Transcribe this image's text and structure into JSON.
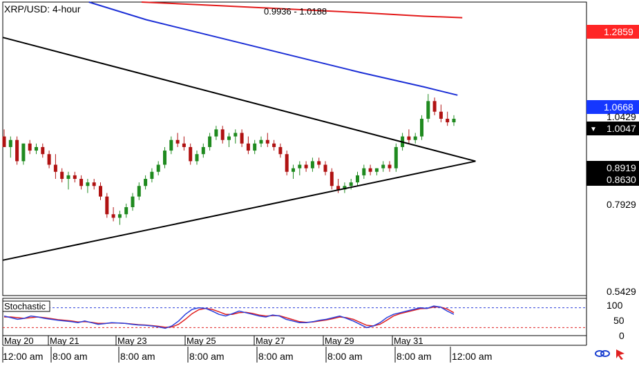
{
  "header": {
    "title": "XRP/USD: 4-hour",
    "ohlc_readout": "0.9936 - 1.0188"
  },
  "price_tags": {
    "sma_red": "1.2859",
    "sma_blue": "1.0668",
    "current": "1.0047",
    "triangle_upper": "0.8919",
    "triangle_lower": "0.8630"
  },
  "colors": {
    "up": "#1f8a1f",
    "down": "#b01212",
    "sma_red": "#e31a1a",
    "sma_blue": "#1c2fd6",
    "trend": "#000000",
    "stoch_k": "#2a3fdc",
    "stoch_d": "#e02020",
    "tag_red": "#ff2525",
    "tag_blue": "#1537ff"
  },
  "stochastic": {
    "label": "Stochastic",
    "levels": [
      "100",
      "50",
      "0"
    ],
    "k": [
      55,
      50,
      45,
      48,
      55,
      52,
      48,
      45,
      42,
      40,
      38,
      35,
      40,
      35,
      30,
      32,
      35,
      34,
      33,
      30,
      28,
      27,
      25,
      22,
      18,
      25,
      40,
      60,
      75,
      80,
      78,
      70,
      60,
      55,
      62,
      70,
      65,
      60,
      55,
      52,
      58,
      55,
      45,
      40,
      35,
      35,
      38,
      42,
      45,
      50,
      55,
      48,
      40,
      30,
      20,
      25,
      35,
      50,
      60,
      65,
      70,
      75,
      80,
      78,
      85,
      82,
      70,
      60
    ],
    "d": [
      52,
      52,
      50,
      48,
      50,
      52,
      50,
      47,
      44,
      42,
      40,
      37,
      38,
      36,
      33,
      33,
      34,
      34,
      33,
      31,
      29,
      28,
      26,
      24,
      21,
      22,
      30,
      45,
      62,
      74,
      78,
      75,
      68,
      60,
      60,
      65,
      66,
      63,
      58,
      55,
      56,
      56,
      50,
      44,
      38,
      36,
      37,
      40,
      43,
      47,
      52,
      50,
      45,
      36,
      27,
      25,
      30,
      42,
      55,
      62,
      67,
      72,
      77,
      78,
      82,
      82,
      76,
      65
    ]
  },
  "chart_data": {
    "type": "candlestick",
    "title": "XRP/USD: 4-hour",
    "y_ticks": [
      "1.0429",
      "0.7929",
      "0.5429"
    ],
    "ylim": [
      0.5,
      1.33
    ],
    "x_date_labels": [
      "May 20",
      "May 21",
      "May 23",
      "May 25",
      "May 27",
      "May 29",
      "May 31"
    ],
    "x_time_labels": [
      "12:00 am",
      "8:00 am",
      "8:00 am",
      "8:00 am",
      "8:00 am",
      "8:00 am",
      "8:00 am",
      "12:00 am"
    ],
    "candles": [
      [
        0.95,
        0.97,
        0.92,
        0.92
      ],
      [
        0.92,
        0.95,
        0.89,
        0.94
      ],
      [
        0.94,
        0.95,
        0.87,
        0.88
      ],
      [
        0.88,
        0.93,
        0.87,
        0.93
      ],
      [
        0.93,
        0.94,
        0.9,
        0.91
      ],
      [
        0.91,
        0.93,
        0.9,
        0.92
      ],
      [
        0.92,
        0.93,
        0.89,
        0.9
      ],
      [
        0.9,
        0.91,
        0.86,
        0.87
      ],
      [
        0.87,
        0.9,
        0.83,
        0.85
      ],
      [
        0.85,
        0.86,
        0.82,
        0.83
      ],
      [
        0.83,
        0.85,
        0.8,
        0.84
      ],
      [
        0.84,
        0.85,
        0.82,
        0.83
      ],
      [
        0.83,
        0.84,
        0.8,
        0.81
      ],
      [
        0.81,
        0.83,
        0.79,
        0.82
      ],
      [
        0.82,
        0.83,
        0.8,
        0.81
      ],
      [
        0.81,
        0.82,
        0.77,
        0.78
      ],
      [
        0.78,
        0.79,
        0.72,
        0.73
      ],
      [
        0.73,
        0.75,
        0.71,
        0.72
      ],
      [
        0.72,
        0.74,
        0.7,
        0.73
      ],
      [
        0.73,
        0.76,
        0.72,
        0.75
      ],
      [
        0.75,
        0.79,
        0.74,
        0.78
      ],
      [
        0.78,
        0.82,
        0.77,
        0.81
      ],
      [
        0.81,
        0.84,
        0.8,
        0.83
      ],
      [
        0.83,
        0.86,
        0.82,
        0.85
      ],
      [
        0.85,
        0.88,
        0.84,
        0.87
      ],
      [
        0.87,
        0.92,
        0.86,
        0.91
      ],
      [
        0.91,
        0.95,
        0.9,
        0.94
      ],
      [
        0.94,
        0.96,
        0.92,
        0.93
      ],
      [
        0.93,
        0.95,
        0.91,
        0.92
      ],
      [
        0.92,
        0.93,
        0.87,
        0.88
      ],
      [
        0.88,
        0.91,
        0.87,
        0.9
      ],
      [
        0.9,
        0.93,
        0.89,
        0.92
      ],
      [
        0.92,
        0.96,
        0.91,
        0.95
      ],
      [
        0.95,
        0.98,
        0.94,
        0.97
      ],
      [
        0.97,
        0.98,
        0.93,
        0.94
      ],
      [
        0.94,
        0.96,
        0.92,
        0.95
      ],
      [
        0.95,
        0.97,
        0.93,
        0.96
      ],
      [
        0.96,
        0.97,
        0.92,
        0.93
      ],
      [
        0.93,
        0.95,
        0.9,
        0.91
      ],
      [
        0.91,
        0.94,
        0.9,
        0.93
      ],
      [
        0.93,
        0.95,
        0.92,
        0.94
      ],
      [
        0.94,
        0.96,
        0.92,
        0.93
      ],
      [
        0.93,
        0.94,
        0.91,
        0.92
      ],
      [
        0.92,
        0.93,
        0.89,
        0.9
      ],
      [
        0.9,
        0.91,
        0.84,
        0.85
      ],
      [
        0.85,
        0.87,
        0.83,
        0.86
      ],
      [
        0.86,
        0.88,
        0.84,
        0.87
      ],
      [
        0.87,
        0.88,
        0.85,
        0.86
      ],
      [
        0.86,
        0.89,
        0.85,
        0.88
      ],
      [
        0.88,
        0.89,
        0.86,
        0.87
      ],
      [
        0.87,
        0.88,
        0.84,
        0.85
      ],
      [
        0.85,
        0.86,
        0.8,
        0.81
      ],
      [
        0.81,
        0.83,
        0.79,
        0.8
      ],
      [
        0.8,
        0.82,
        0.79,
        0.81
      ],
      [
        0.81,
        0.83,
        0.8,
        0.82
      ],
      [
        0.82,
        0.85,
        0.81,
        0.84
      ],
      [
        0.84,
        0.87,
        0.83,
        0.86
      ],
      [
        0.86,
        0.87,
        0.84,
        0.85
      ],
      [
        0.85,
        0.86,
        0.84,
        0.86
      ],
      [
        0.86,
        0.88,
        0.85,
        0.87
      ],
      [
        0.87,
        0.88,
        0.85,
        0.86
      ],
      [
        0.86,
        0.93,
        0.85,
        0.92
      ],
      [
        0.92,
        0.96,
        0.91,
        0.95
      ],
      [
        0.95,
        0.97,
        0.93,
        0.94
      ],
      [
        0.94,
        0.96,
        0.93,
        0.95
      ],
      [
        0.95,
        1.01,
        0.94,
        1.0
      ],
      [
        1.0,
        1.07,
        0.99,
        1.05
      ],
      [
        1.05,
        1.06,
        1.01,
        1.02
      ],
      [
        1.02,
        1.04,
        0.99,
        1.0
      ],
      [
        1.0,
        1.02,
        0.98,
        0.99
      ],
      [
        0.99,
        1.01,
        0.98,
        1.0
      ]
    ],
    "sma_blue": [
      [
        0.18,
        1.33
      ],
      [
        0.3,
        1.28
      ],
      [
        0.45,
        1.23
      ],
      [
        0.6,
        1.18
      ],
      [
        0.75,
        1.13
      ],
      [
        0.88,
        1.09
      ],
      [
        0.95,
        1.0668
      ]
    ],
    "sma_red": [
      [
        0.29,
        1.33
      ],
      [
        0.45,
        1.32
      ],
      [
        0.6,
        1.31
      ],
      [
        0.75,
        1.3
      ],
      [
        0.88,
        1.29
      ],
      [
        0.96,
        1.2859
      ]
    ],
    "trendlines": [
      {
        "from": [
          0.0,
          1.23
        ],
        "to": [
          1.0,
          0.88
        ]
      },
      {
        "from": [
          0.0,
          0.6
        ],
        "to": [
          1.0,
          0.88
        ]
      }
    ],
    "grid": false
  }
}
